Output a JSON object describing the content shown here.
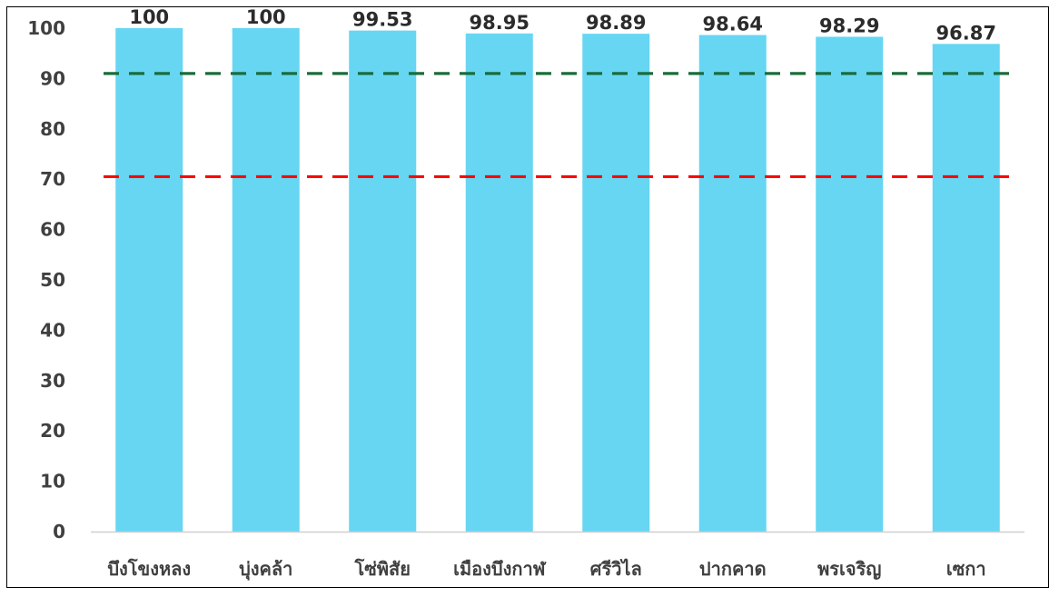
{
  "chart_data": {
    "type": "bar",
    "categories": [
      "บึงโขงหลง",
      "บุ่งคล้า",
      "โซ่พิสัย",
      "เมืองบึงกาฬ",
      "ศรีวิไล",
      "ปากคาด",
      "พรเจริญ",
      "เซกา"
    ],
    "values": [
      100,
      100,
      99.53,
      98.95,
      98.89,
      98.64,
      98.29,
      96.87
    ],
    "value_labels": [
      "100",
      "100",
      "99.53",
      "98.95",
      "98.89",
      "98.64",
      "98.29",
      "96.87"
    ],
    "ylim": [
      0,
      100
    ],
    "yticks": [
      0,
      10,
      20,
      30,
      40,
      50,
      60,
      70,
      80,
      90,
      100
    ],
    "bar_color": "#66d6f2",
    "reference_lines": [
      {
        "value": 91,
        "color": "#1a6b3a",
        "style": "dashed"
      },
      {
        "value": 70.5,
        "color": "#ff0000",
        "style": "dashed"
      }
    ],
    "title": "",
    "xlabel": "",
    "ylabel": "",
    "grid": false,
    "legend": "none"
  }
}
